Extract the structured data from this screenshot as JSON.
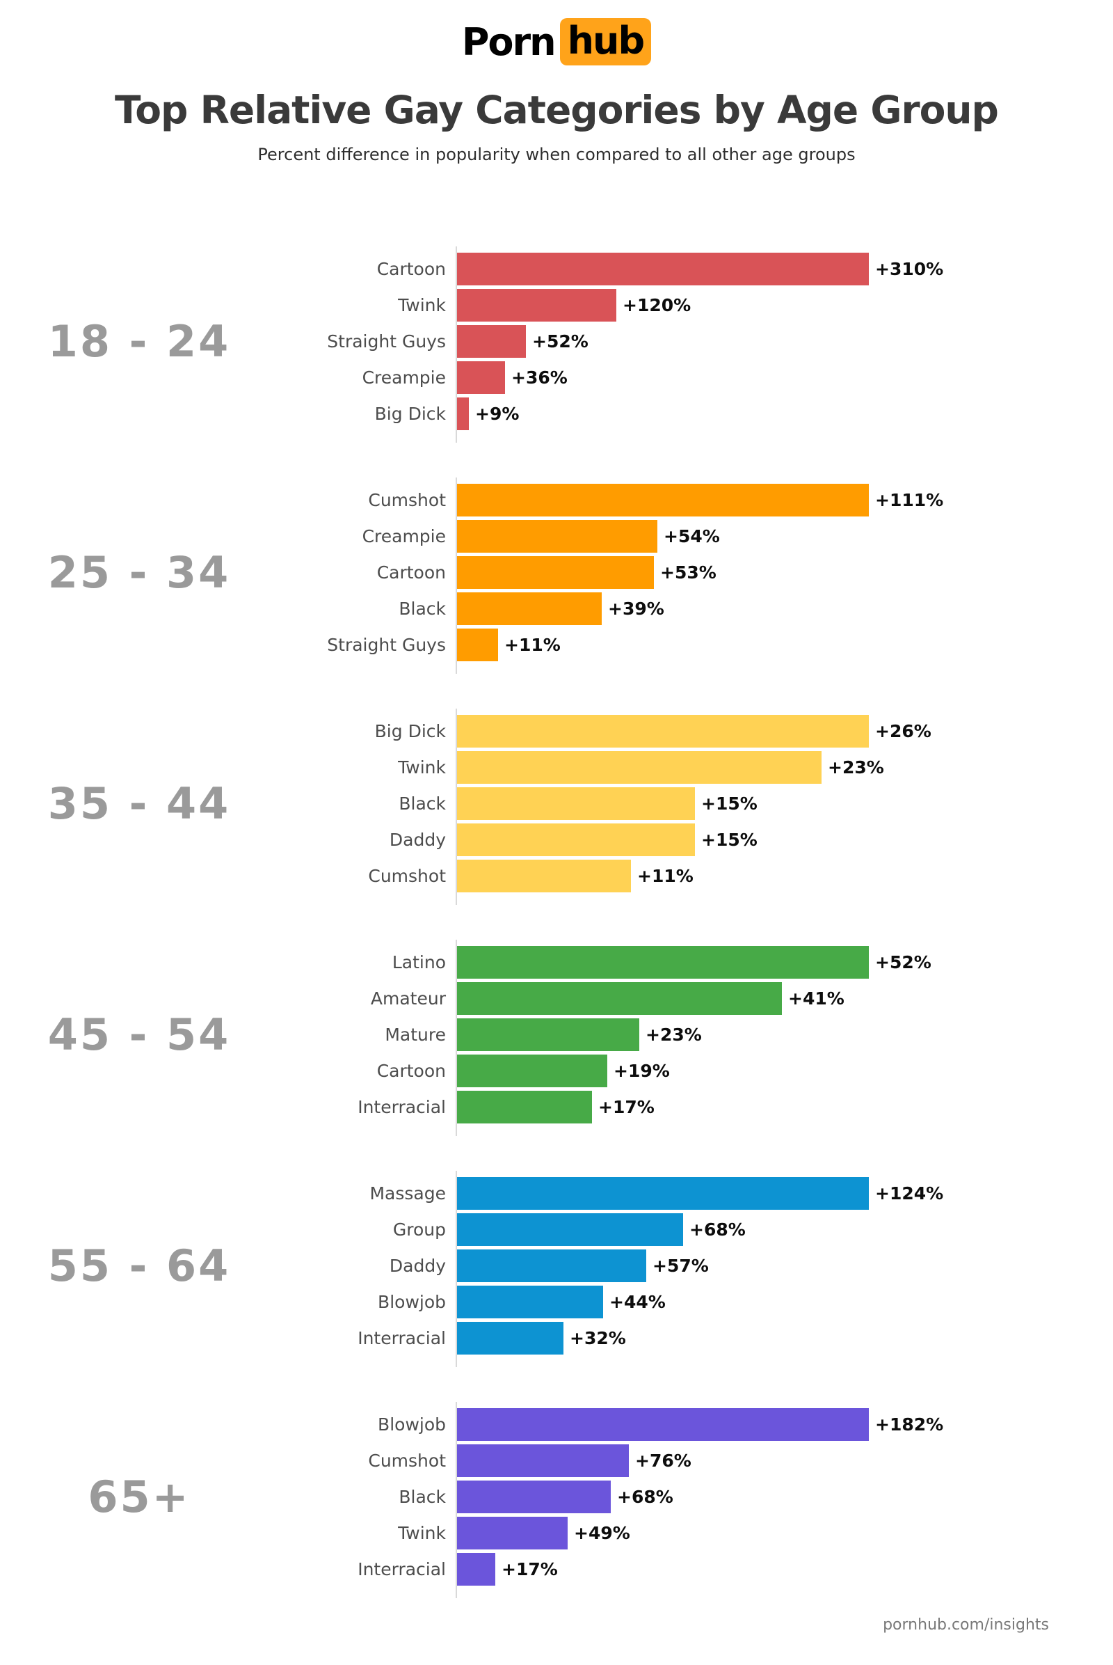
{
  "header": {
    "logo": {
      "part1": "Porn",
      "part2": "hub",
      "accent_color": "#FFA31A"
    },
    "title": "Top Relative Gay Categories by Age Group",
    "subtitle": "Percent difference in popularity when compared to all other age groups"
  },
  "footer": {
    "credit": "pornhub.com/insights"
  },
  "chart_data": {
    "type": "bar",
    "orientation": "horizontal",
    "title": "Top Relative Gay Categories by Age Group",
    "subtitle": "Percent difference in popularity when compared to all other age groups",
    "value_unit": "percent difference vs all other age groups",
    "layout_hints": {
      "grid": false,
      "value_labels": "outside bar end, prefixed with +, suffixed with %",
      "bar_scaling": "bars scaled relative to each group's maximum value",
      "axis_line_color": "#d9d9d9"
    },
    "groups": [
      {
        "age_group": "18 - 24",
        "color": "#D95357",
        "bars": [
          {
            "category": "Cartoon",
            "value": 310,
            "label": "+310%"
          },
          {
            "category": "Twink",
            "value": 120,
            "label": "+120%"
          },
          {
            "category": "Straight Guys",
            "value": 52,
            "label": "+52%"
          },
          {
            "category": "Creampie",
            "value": 36,
            "label": "+36%"
          },
          {
            "category": "Big Dick",
            "value": 9,
            "label": "+9%"
          }
        ]
      },
      {
        "age_group": "25 - 34",
        "color": "#FF9C00",
        "bars": [
          {
            "category": "Cumshot",
            "value": 111,
            "label": "+111%"
          },
          {
            "category": "Creampie",
            "value": 54,
            "label": "+54%"
          },
          {
            "category": "Cartoon",
            "value": 53,
            "label": "+53%"
          },
          {
            "category": "Black",
            "value": 39,
            "label": "+39%"
          },
          {
            "category": "Straight Guys",
            "value": 11,
            "label": "+11%"
          }
        ]
      },
      {
        "age_group": "35 - 44",
        "color": "#FFD254",
        "bars": [
          {
            "category": "Big Dick",
            "value": 26,
            "label": "+26%"
          },
          {
            "category": "Twink",
            "value": 23,
            "label": "+23%"
          },
          {
            "category": "Black",
            "value": 15,
            "label": "+15%"
          },
          {
            "category": "Daddy",
            "value": 15,
            "label": "+15%"
          },
          {
            "category": "Cumshot",
            "value": 11,
            "label": "+11%"
          }
        ]
      },
      {
        "age_group": "45 - 54",
        "color": "#47AA47",
        "bars": [
          {
            "category": "Latino",
            "value": 52,
            "label": "+52%"
          },
          {
            "category": "Amateur",
            "value": 41,
            "label": "+41%"
          },
          {
            "category": "Mature",
            "value": 23,
            "label": "+23%"
          },
          {
            "category": "Cartoon",
            "value": 19,
            "label": "+19%"
          },
          {
            "category": "Interracial",
            "value": 17,
            "label": "+17%"
          }
        ]
      },
      {
        "age_group": "55 - 64",
        "color": "#0D93D2",
        "bars": [
          {
            "category": "Massage",
            "value": 124,
            "label": "+124%"
          },
          {
            "category": "Group",
            "value": 68,
            "label": "+68%"
          },
          {
            "category": "Daddy",
            "value": 57,
            "label": "+57%"
          },
          {
            "category": "Blowjob",
            "value": 44,
            "label": "+44%"
          },
          {
            "category": "Interracial",
            "value": 32,
            "label": "+32%"
          }
        ]
      },
      {
        "age_group": "65+",
        "color": "#6B55DB",
        "bars": [
          {
            "category": "Blowjob",
            "value": 182,
            "label": "+182%"
          },
          {
            "category": "Cumshot",
            "value": 76,
            "label": "+76%"
          },
          {
            "category": "Black",
            "value": 68,
            "label": "+68%"
          },
          {
            "category": "Twink",
            "value": 49,
            "label": "+49%"
          },
          {
            "category": "Interracial",
            "value": 17,
            "label": "+17%"
          }
        ]
      }
    ]
  }
}
